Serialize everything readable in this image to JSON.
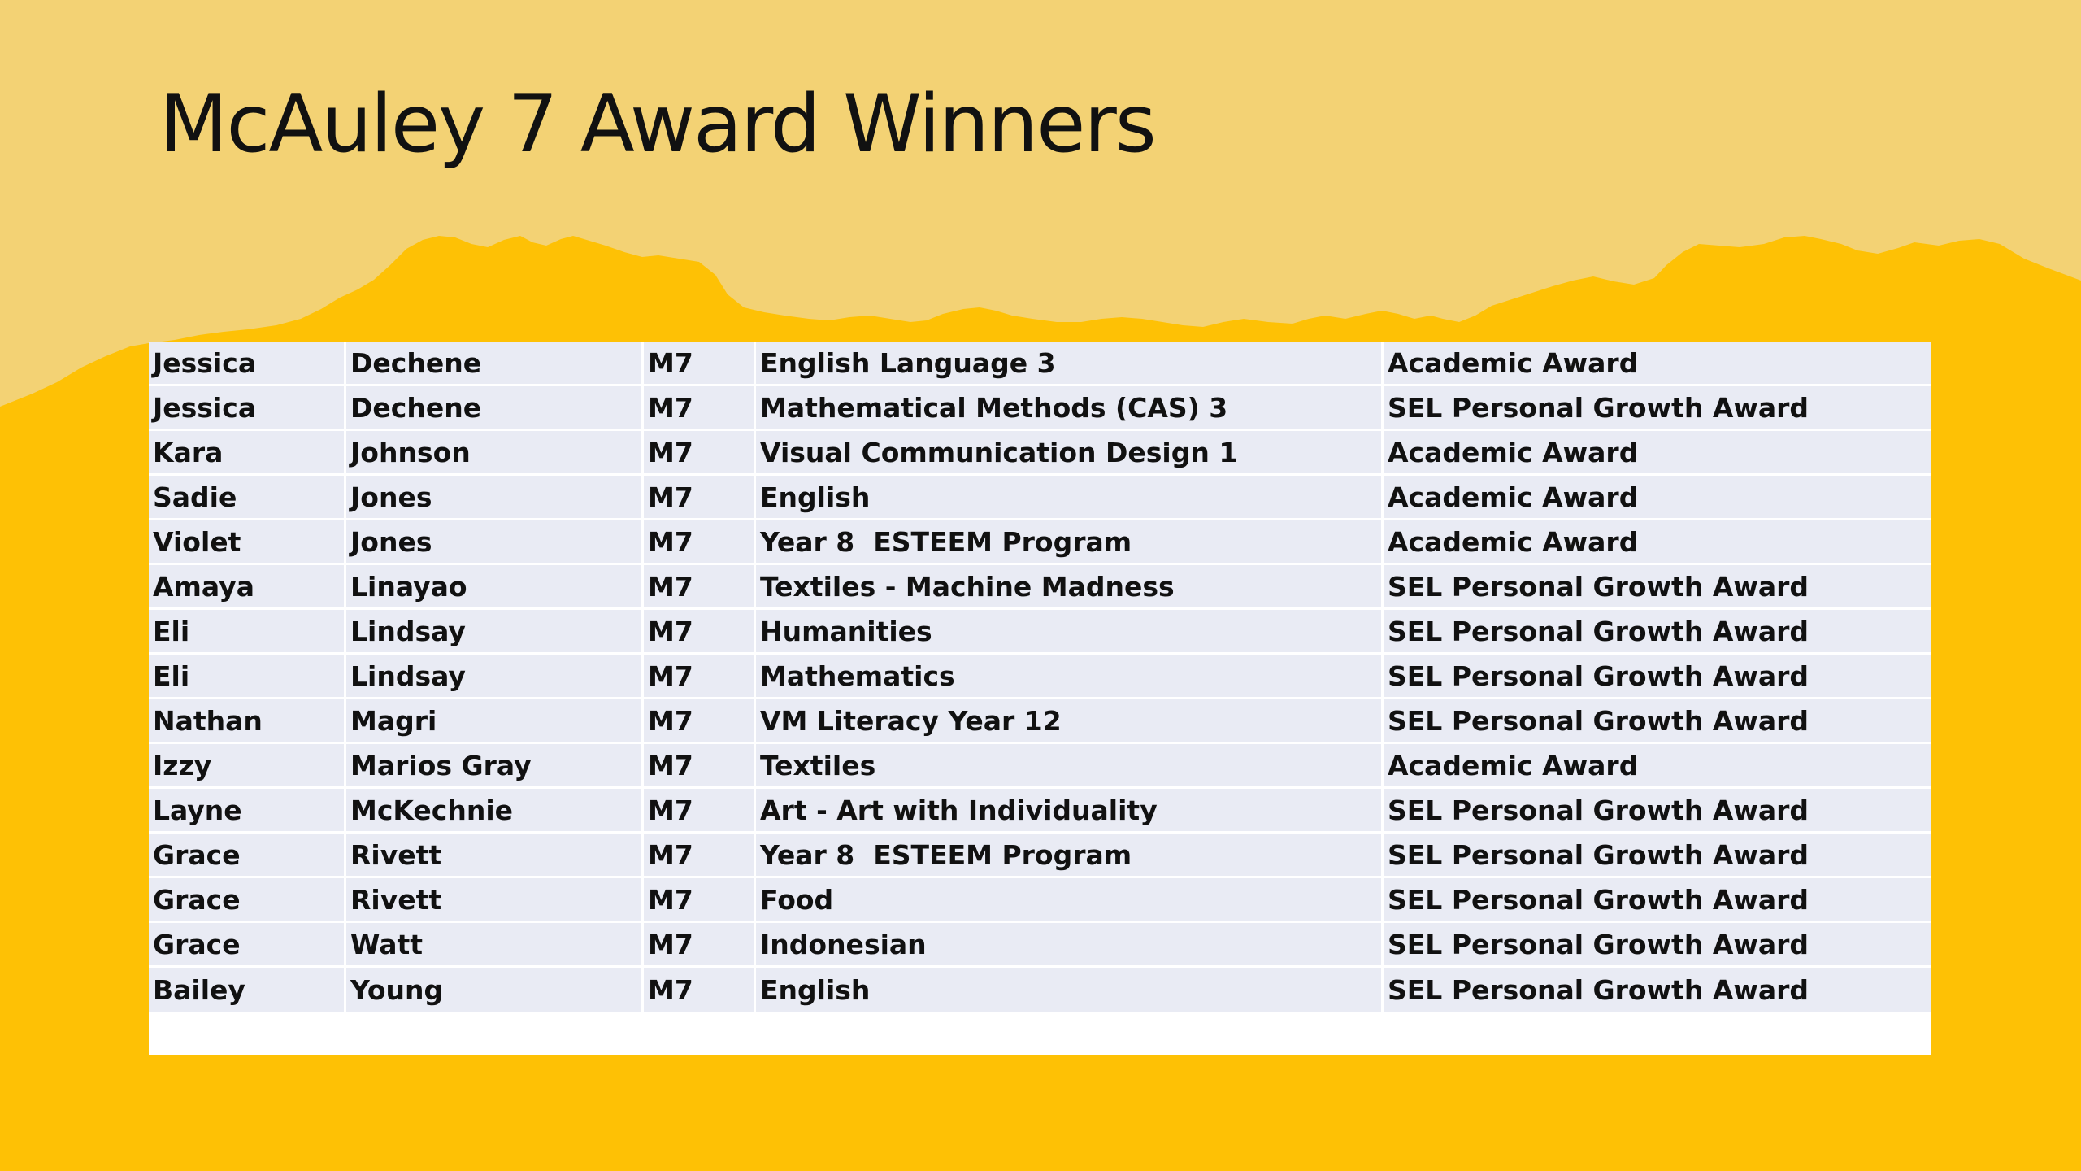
{
  "slide": {
    "title": "McAuley 7 Award Winners",
    "colors": {
      "background": "#FEC105",
      "top_band": "#F3D274",
      "table_cell": "#E9EBF4",
      "text": "#111111"
    }
  },
  "table": {
    "rows": [
      {
        "first": "Jessica",
        "last": "Dechene",
        "group": "M7",
        "subject": "English Language 3",
        "award": "Academic Award"
      },
      {
        "first": "Jessica",
        "last": "Dechene",
        "group": "M7",
        "subject": "Mathematical Methods (CAS) 3",
        "award": "SEL Personal Growth Award"
      },
      {
        "first": "Kara",
        "last": "Johnson",
        "group": "M7",
        "subject": "Visual Communication Design 1",
        "award": "Academic Award"
      },
      {
        "first": "Sadie",
        "last": "Jones",
        "group": "M7",
        "subject": "English",
        "award": "Academic Award"
      },
      {
        "first": "Violet",
        "last": "Jones",
        "group": "M7",
        "subject": "Year 8  ESTEEM Program",
        "award": "Academic Award"
      },
      {
        "first": "Amaya",
        "last": "Linayao",
        "group": "M7",
        "subject": "Textiles - Machine Madness",
        "award": "SEL Personal Growth Award"
      },
      {
        "first": "Eli",
        "last": "Lindsay",
        "group": "M7",
        "subject": "Humanities",
        "award": "SEL Personal Growth Award"
      },
      {
        "first": "Eli",
        "last": "Lindsay",
        "group": "M7",
        "subject": "Mathematics",
        "award": "SEL Personal Growth Award"
      },
      {
        "first": "Nathan",
        "last": "Magri",
        "group": "M7",
        "subject": "VM Literacy Year 12",
        "award": "SEL Personal Growth Award"
      },
      {
        "first": "Izzy",
        "last": "Marios Gray",
        "group": "M7",
        "subject": "Textiles",
        "award": "Academic Award"
      },
      {
        "first": "Layne",
        "last": "McKechnie",
        "group": "M7",
        "subject": "Art - Art with Individuality",
        "award": "SEL Personal Growth Award"
      },
      {
        "first": "Grace",
        "last": "Rivett",
        "group": "M7",
        "subject": "Year 8  ESTEEM Program",
        "award": "SEL Personal Growth Award"
      },
      {
        "first": "Grace",
        "last": "Rivett",
        "group": "M7",
        "subject": "Food",
        "award": "SEL Personal Growth Award"
      },
      {
        "first": "Grace",
        "last": "Watt",
        "group": "M7",
        "subject": "Indonesian",
        "award": "SEL Personal Growth Award"
      },
      {
        "first": "Bailey",
        "last": "Young",
        "group": "M7",
        "subject": "English",
        "award": "SEL Personal Growth Award"
      }
    ]
  }
}
